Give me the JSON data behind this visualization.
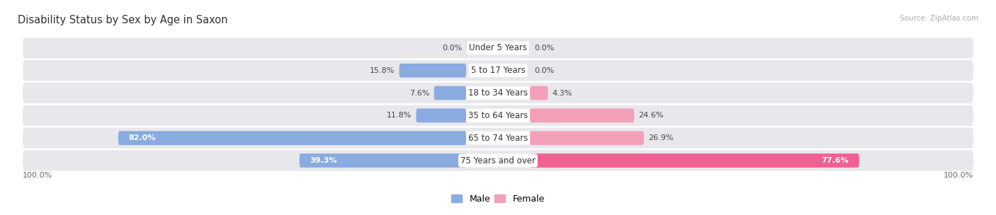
{
  "title": "Disability Status by Sex by Age in Saxon",
  "source": "Source: ZipAtlas.com",
  "categories": [
    "Under 5 Years",
    "5 to 17 Years",
    "18 to 34 Years",
    "35 to 64 Years",
    "65 to 74 Years",
    "75 Years and over"
  ],
  "male_values": [
    0.0,
    15.8,
    7.6,
    11.8,
    82.0,
    39.3
  ],
  "female_values": [
    0.0,
    0.0,
    4.3,
    24.6,
    26.9,
    77.6
  ],
  "male_color": "#89abe0",
  "female_color_normal": "#f4a0b8",
  "female_color_large": "#f06090",
  "male_color_large": "#89abe0",
  "row_bg_color": "#e8e8ec",
  "max_value": 100.0,
  "title_fontsize": 10.5,
  "label_fontsize": 8.5,
  "value_fontsize": 8.0,
  "axis_label_left": "100.0%",
  "axis_label_right": "100.0%",
  "large_threshold": 50.0
}
